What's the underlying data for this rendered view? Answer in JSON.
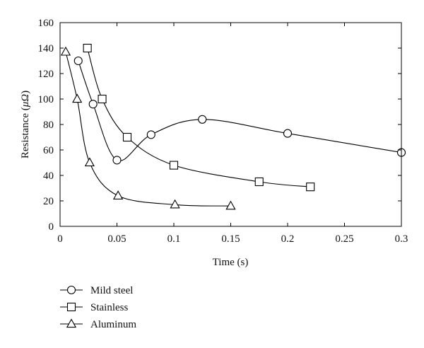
{
  "chart_data": {
    "type": "line",
    "xlabel": "Time (s)",
    "ylabel_parts": [
      "Resistance (",
      "μΩ",
      ")"
    ],
    "xlim": [
      0,
      0.3
    ],
    "ylim": [
      0,
      160
    ],
    "x_ticks": [
      0,
      0.05,
      0.1,
      0.15,
      0.2,
      0.25,
      0.3
    ],
    "x_tick_labels": [
      "0",
      "0.05",
      "0.1",
      "0.15",
      "0.2",
      "0.25",
      "0.3"
    ],
    "y_ticks": [
      0,
      20,
      40,
      60,
      80,
      100,
      120,
      140,
      160
    ],
    "y_tick_labels": [
      "0",
      "20",
      "40",
      "60",
      "80",
      "100",
      "120",
      "140",
      "160"
    ],
    "grid": false,
    "legend_position": "below plot, left",
    "series": [
      {
        "name": "Mild steel",
        "marker": "circle",
        "x": [
          0.016,
          0.029,
          0.05,
          0.08,
          0.125,
          0.2,
          0.3
        ],
        "y": [
          130,
          96,
          52,
          72,
          84,
          73,
          58
        ]
      },
      {
        "name": "Stainless",
        "marker": "square",
        "x": [
          0.024,
          0.037,
          0.059,
          0.1,
          0.175,
          0.22
        ],
        "y": [
          140,
          100,
          70,
          48,
          35,
          31
        ]
      },
      {
        "name": "Aluminum",
        "marker": "triangle",
        "x": [
          0.005,
          0.015,
          0.026,
          0.051,
          0.101,
          0.15
        ],
        "y": [
          137,
          100,
          50,
          24,
          17,
          16
        ]
      }
    ]
  }
}
